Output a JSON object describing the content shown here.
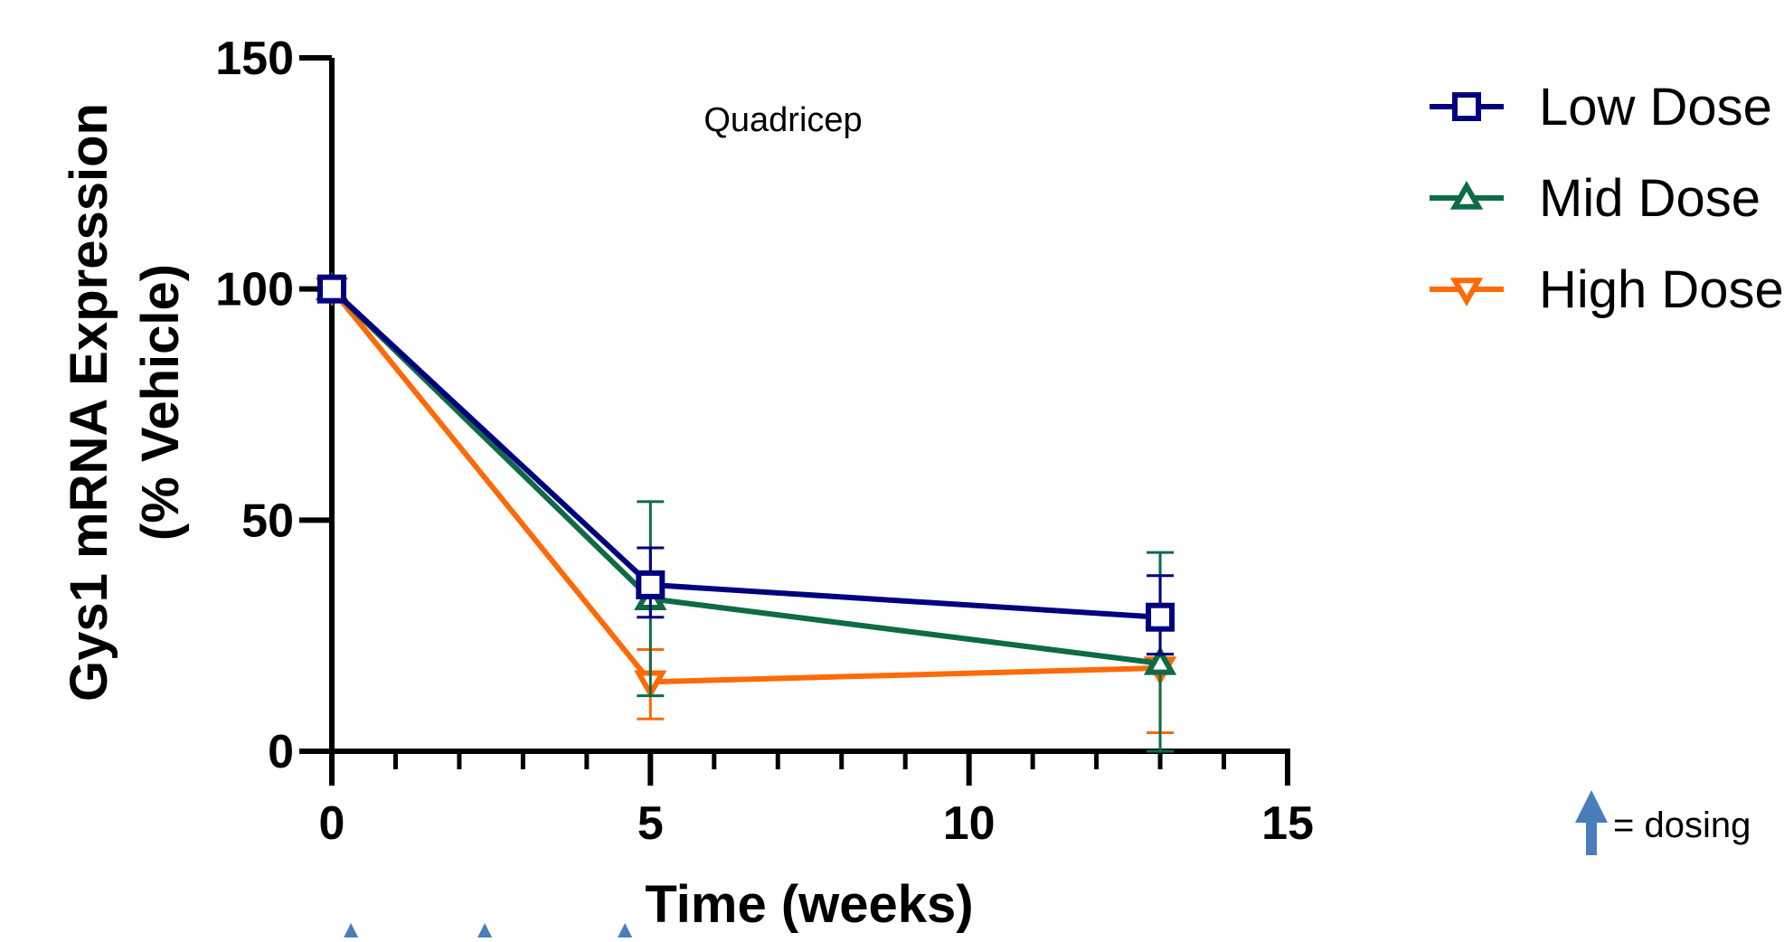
{
  "chart_data": {
    "type": "line",
    "title": "",
    "annotation": "Quadricep",
    "xlabel": "Time (weeks)",
    "ylabel_line1": "Gys1 mRNA Expression",
    "ylabel_line2": "(% Vehicle)",
    "xlim": [
      0,
      15
    ],
    "ylim": [
      0,
      150
    ],
    "x_ticks": [
      0,
      5,
      10,
      15
    ],
    "y_ticks": [
      0,
      50,
      100,
      150
    ],
    "x_minor_step": 1,
    "grid": false,
    "legend_position": "top-right",
    "series": [
      {
        "name": "Low Dose",
        "marker": "square",
        "color": "#00007f",
        "x": [
          0,
          5,
          13
        ],
        "y": [
          100,
          36,
          29
        ],
        "err_upper": [
          null,
          44,
          38
        ],
        "err_lower": [
          null,
          29,
          21
        ]
      },
      {
        "name": "Mid Dose",
        "marker": "triangle-up",
        "color": "#0e6b43",
        "x": [
          0,
          5,
          13
        ],
        "y": [
          100,
          33,
          19
        ],
        "err_upper": [
          null,
          54,
          43
        ],
        "err_lower": [
          null,
          12,
          0
        ]
      },
      {
        "name": "High Dose",
        "marker": "triangle-down",
        "color": "#fd6a07",
        "x": [
          0,
          5,
          13
        ],
        "y": [
          100,
          15,
          18
        ],
        "err_upper": [
          null,
          22,
          21
        ],
        "err_lower": [
          null,
          7,
          4
        ]
      }
    ],
    "dosing_key_label": "= dosing",
    "dosing_arrow_color": "#4a7ebb",
    "dosing_weeks": [
      0.3,
      2.4,
      4.6
    ]
  }
}
